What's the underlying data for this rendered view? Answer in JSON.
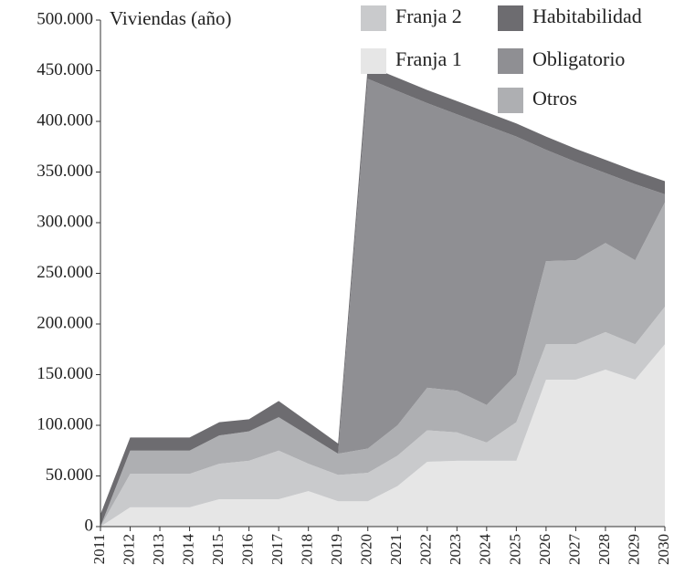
{
  "chart_data": {
    "type": "stacked_area",
    "y_axis_label": "Viviendas (año)",
    "categories": [
      "2011",
      "2012",
      "2013",
      "2014",
      "2015",
      "2016",
      "2017",
      "2018",
      "2019",
      "2020",
      "2021",
      "2022",
      "2023",
      "2024",
      "2025",
      "2026",
      "2027",
      "2028",
      "2029",
      "2030"
    ],
    "series": [
      {
        "name": "Franja 1",
        "color": "#e6e6e6",
        "values": [
          0,
          19000,
          19000,
          19000,
          27000,
          27000,
          27000,
          35000,
          25000,
          25000,
          40000,
          64000,
          65000,
          65000,
          65000,
          145000,
          145000,
          155000,
          145000,
          180000
        ]
      },
      {
        "name": "Franja 2",
        "color": "#c9cacc",
        "values": [
          0,
          33000,
          33000,
          33000,
          35000,
          38000,
          48000,
          27000,
          26000,
          28000,
          30000,
          31000,
          28000,
          18000,
          38000,
          35000,
          35000,
          37000,
          35000,
          37000
        ]
      },
      {
        "name": "Otros",
        "color": "#aeafb2",
        "values": [
          0,
          23000,
          23000,
          23000,
          28000,
          29000,
          33000,
          28000,
          21000,
          24000,
          30000,
          42000,
          41000,
          37000,
          47000,
          82000,
          83000,
          88000,
          83000,
          103000
        ]
      },
      {
        "name": "Obligatorio",
        "color": "#8f8f93",
        "values": [
          0,
          0,
          0,
          0,
          0,
          0,
          0,
          0,
          0,
          365000,
          330000,
          281000,
          273000,
          276000,
          235000,
          110000,
          97000,
          69000,
          75000,
          8000
        ]
      },
      {
        "name": "Habitabilidad",
        "color": "#6d6c70",
        "values": [
          12000,
          13000,
          13000,
          13000,
          13000,
          12000,
          16000,
          13000,
          10000,
          13000,
          13000,
          13000,
          13000,
          13000,
          13000,
          13000,
          13000,
          13000,
          13000,
          13000
        ]
      }
    ],
    "ylim": [
      0,
      500000
    ],
    "yticks": [
      0,
      {
        "value": 50000,
        "label": "50.000"
      },
      {
        "value": 100000,
        "label": "100.000"
      },
      {
        "value": 150000,
        "label": "150.000"
      },
      {
        "value": 200000,
        "label": "200.000"
      },
      {
        "value": 250000,
        "label": "250.000"
      },
      {
        "value": 300000,
        "label": "300.000"
      },
      {
        "value": 350000,
        "label": "350.000"
      },
      {
        "value": 400000,
        "label": "400.000"
      },
      {
        "value": 450000,
        "label": "450.000"
      },
      {
        "value": 500000,
        "label": "500.000"
      }
    ]
  }
}
